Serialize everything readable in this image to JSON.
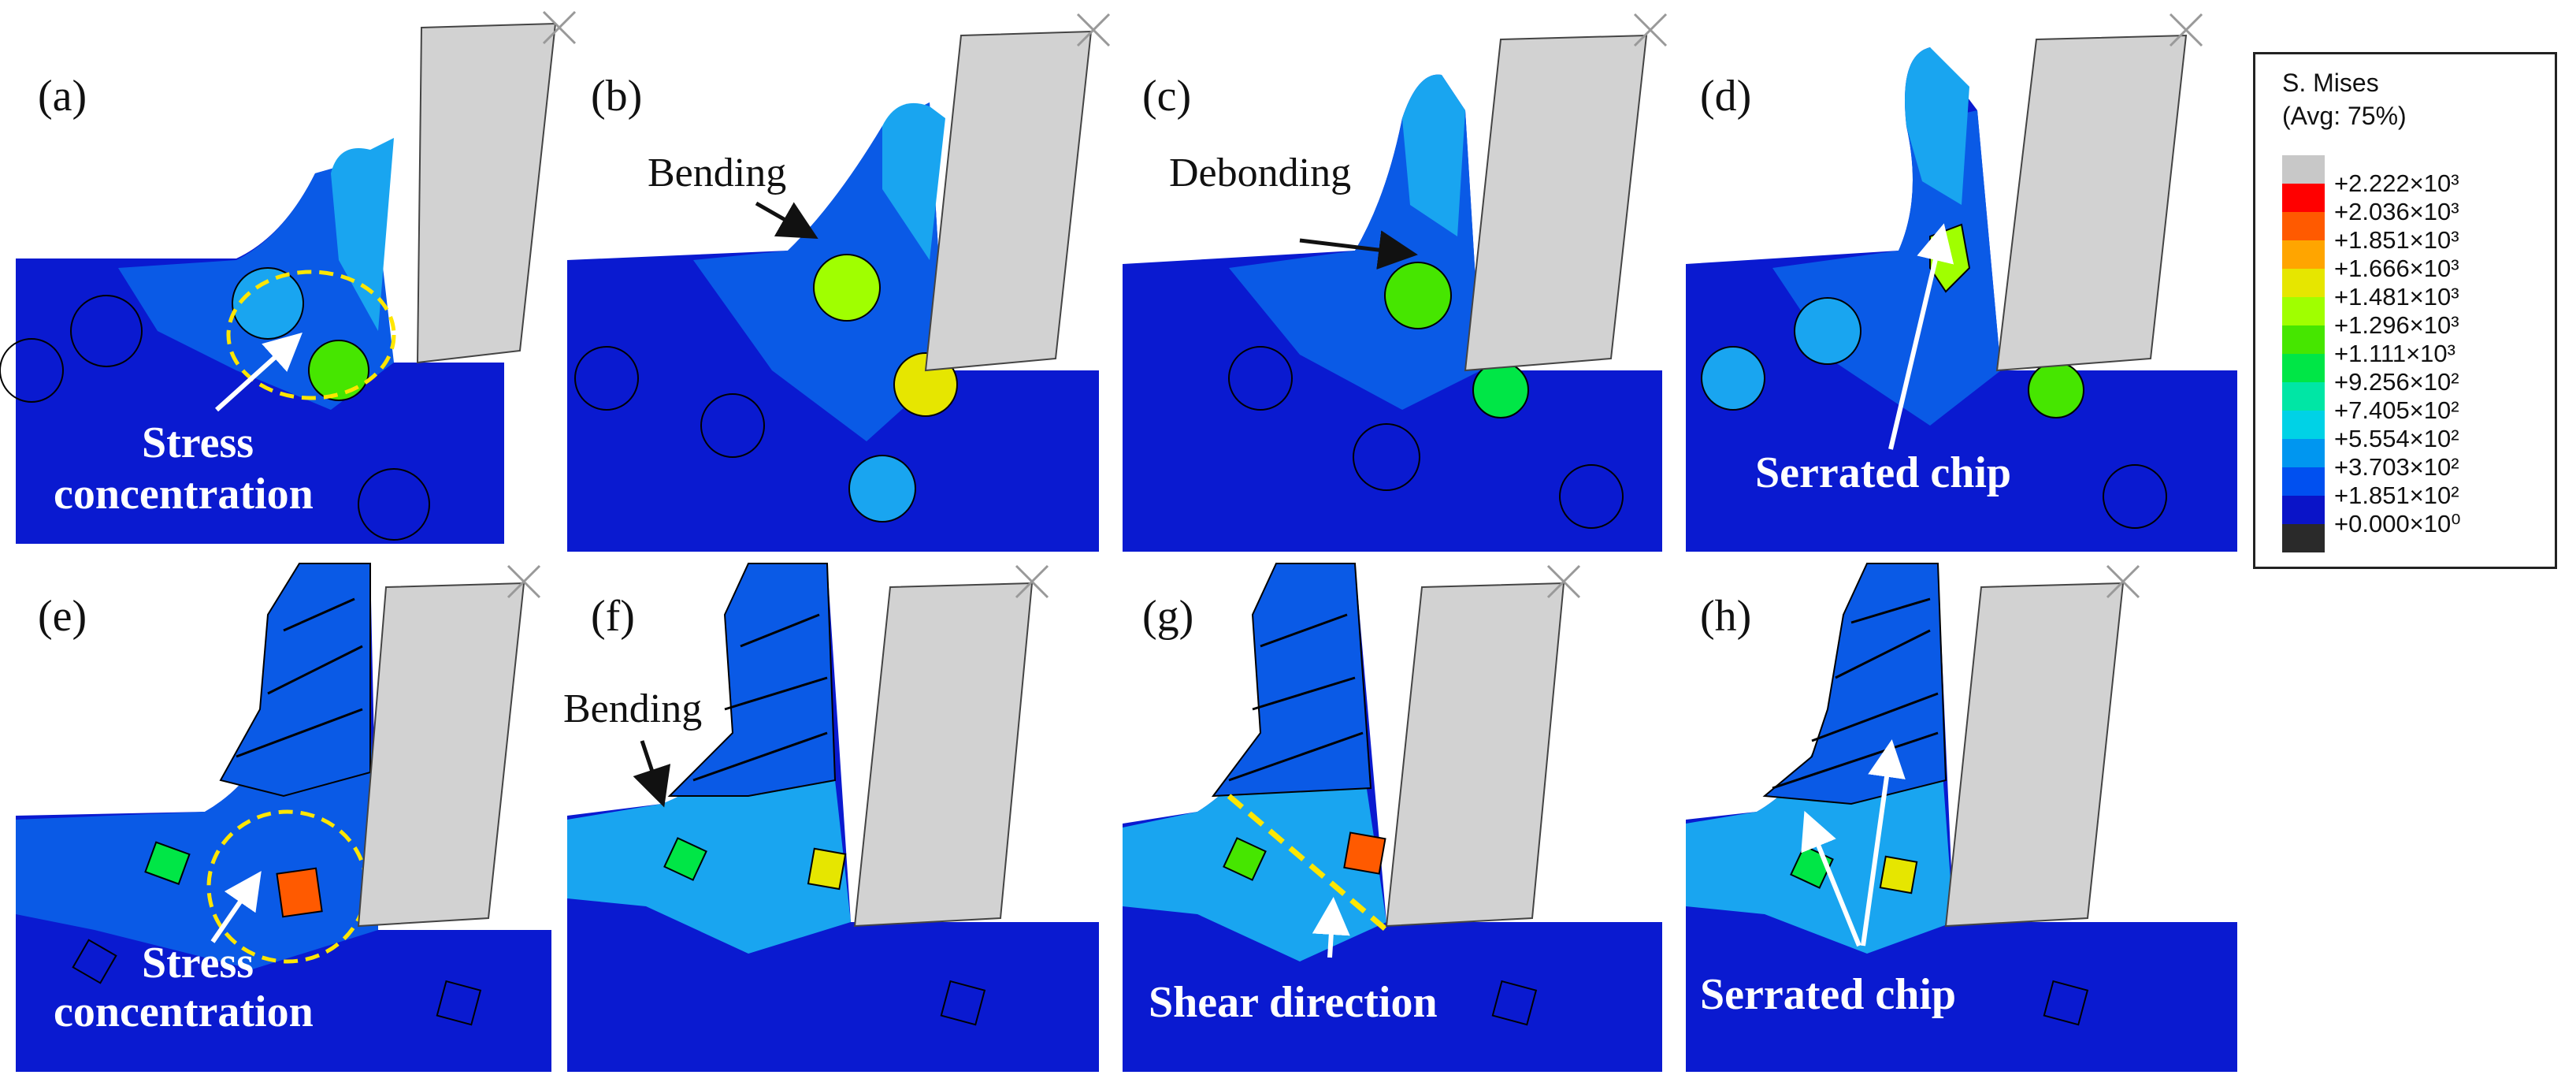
{
  "legend": {
    "title_line1": "S. Mises",
    "title_line2": "(Avg: 75%)",
    "levels": [
      {
        "value": "+2.222×10³",
        "color": "#c8c8c8"
      },
      {
        "value": "+2.036×10³",
        "color": "#ff0000"
      },
      {
        "value": "+1.851×10³",
        "color": "#ff5a00"
      },
      {
        "value": "+1.666×10³",
        "color": "#ffa500"
      },
      {
        "value": "+1.481×10³",
        "color": "#e6e600"
      },
      {
        "value": "+1.296×10³",
        "color": "#a0ff00"
      },
      {
        "value": "+1.111×10³",
        "color": "#46e600"
      },
      {
        "value": "+9.256×10²",
        "color": "#00e646"
      },
      {
        "value": "+7.405×10²",
        "color": "#00e6a5"
      },
      {
        "value": "+5.554×10²",
        "color": "#00d2e6"
      },
      {
        "value": "+3.703×10²",
        "color": "#0096f0"
      },
      {
        "value": "+1.851×10²",
        "color": "#0050f0"
      },
      {
        "value": "+0.000×10⁰",
        "color": "#0a14c8"
      },
      {
        "value": "",
        "color": "#2a2a2a"
      }
    ]
  },
  "panels": [
    {
      "id": "(a)",
      "annotations": [
        "Stress",
        "concentration"
      ]
    },
    {
      "id": "(b)",
      "annotations": [
        "Bending"
      ]
    },
    {
      "id": "(c)",
      "annotations": [
        "Debonding"
      ]
    },
    {
      "id": "(d)",
      "annotations": [
        "Serrated chip"
      ]
    },
    {
      "id": "(e)",
      "annotations": [
        "Stress",
        "concentration"
      ]
    },
    {
      "id": "(f)",
      "annotations": [
        "Bending"
      ]
    },
    {
      "id": "(g)",
      "annotations": [
        "Shear direction"
      ]
    },
    {
      "id": "(h)",
      "annotations": [
        "Serrated chip"
      ]
    }
  ],
  "colors": {
    "workpiece_base": "#0a1ad0",
    "workpiece_mid": "#0a5ae6",
    "workpiece_light": "#19a5f0",
    "tool": "#d2d2d2"
  }
}
